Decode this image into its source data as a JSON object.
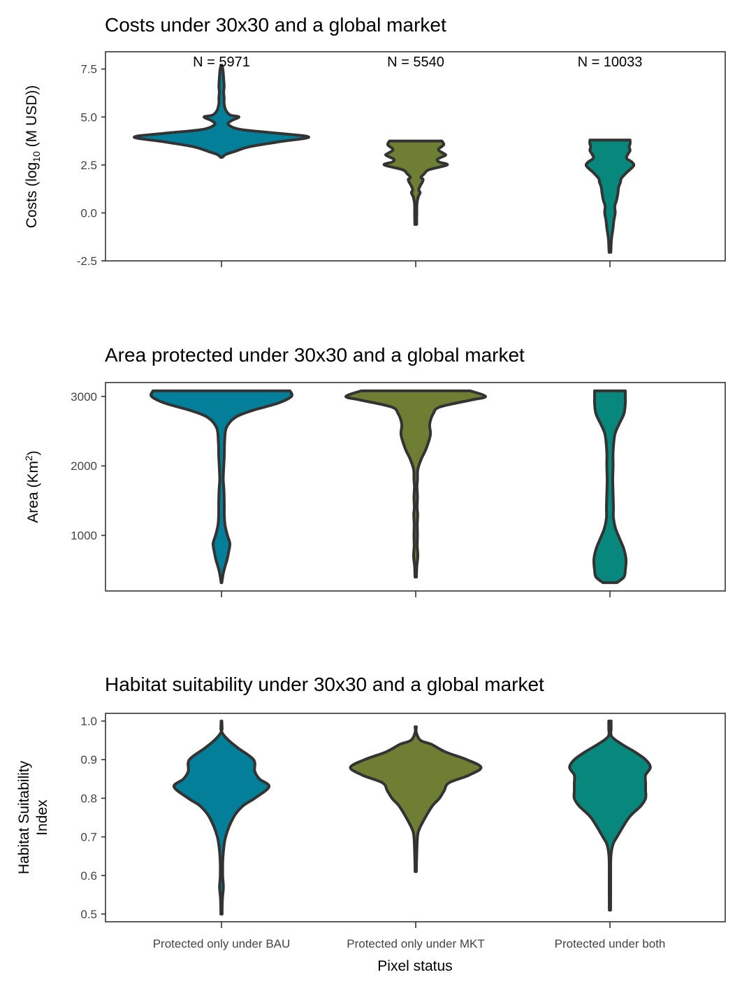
{
  "chart_data": [
    {
      "type": "violin",
      "title": "Costs under 30x30 and a global market",
      "ylabel_main": "Costs (log",
      "ylabel_sub": "10",
      "ylabel_tail": " (M USD))",
      "ylim": [
        -2.5,
        8.4
      ],
      "yticks": [
        -2.5,
        0.0,
        2.5,
        5.0,
        7.5
      ],
      "ytick_labels": [
        "-2.5",
        "0.0",
        "2.5",
        "5.0",
        "7.5"
      ],
      "categories": [
        "Protected only under BAU",
        "Protected only under MKT",
        "Protected under both"
      ],
      "annotations": [
        "N = 5971",
        "N = 5540",
        "N = 10033"
      ],
      "colors": [
        "#047F9A",
        "#6E7F33",
        "#08877C"
      ],
      "series": [
        {
          "name": "Protected only under BAU",
          "profile": [
            [
              2.9,
              0.01
            ],
            [
              3.05,
              0.05
            ],
            [
              3.2,
              0.15
            ],
            [
              3.45,
              0.32
            ],
            [
              3.7,
              0.65
            ],
            [
              3.95,
              1.0
            ],
            [
              4.15,
              0.65
            ],
            [
              4.35,
              0.22
            ],
            [
              4.6,
              0.08
            ],
            [
              4.8,
              0.11
            ],
            [
              5.0,
              0.2
            ],
            [
              5.1,
              0.1
            ],
            [
              5.35,
              0.05
            ],
            [
              5.7,
              0.03
            ],
            [
              6.0,
              0.03
            ],
            [
              6.3,
              0.025
            ],
            [
              6.6,
              0.03
            ],
            [
              7.0,
              0.025
            ],
            [
              7.3,
              0.02
            ],
            [
              7.5,
              0.015
            ],
            [
              7.7,
              0.005
            ]
          ]
        },
        {
          "name": "Protected only under MKT",
          "profile": [
            [
              -0.6,
              0.01
            ],
            [
              0.0,
              0.012
            ],
            [
              0.5,
              0.014
            ],
            [
              0.85,
              0.03
            ],
            [
              1.05,
              0.05
            ],
            [
              1.2,
              0.035
            ],
            [
              1.4,
              0.05
            ],
            [
              1.6,
              0.075
            ],
            [
              1.75,
              0.085
            ],
            [
              1.85,
              0.06
            ],
            [
              2.05,
              0.1
            ],
            [
              2.25,
              0.15
            ],
            [
              2.5,
              0.36
            ],
            [
              2.65,
              0.27
            ],
            [
              2.8,
              0.25
            ],
            [
              3.0,
              0.34
            ],
            [
              3.1,
              0.32
            ],
            [
              3.3,
              0.26
            ],
            [
              3.55,
              0.32
            ],
            [
              3.75,
              0.3
            ]
          ]
        },
        {
          "name": "Protected under both",
          "profile": [
            [
              -2.05,
              0.01
            ],
            [
              -1.5,
              0.015
            ],
            [
              -1.2,
              0.022
            ],
            [
              -0.8,
              0.035
            ],
            [
              -0.4,
              0.045
            ],
            [
              0.0,
              0.06
            ],
            [
              0.35,
              0.055
            ],
            [
              0.65,
              0.075
            ],
            [
              1.0,
              0.09
            ],
            [
              1.35,
              0.1
            ],
            [
              1.6,
              0.12
            ],
            [
              1.8,
              0.13
            ],
            [
              2.1,
              0.19
            ],
            [
              2.45,
              0.27
            ],
            [
              2.65,
              0.25
            ],
            [
              2.85,
              0.19
            ],
            [
              3.1,
              0.21
            ],
            [
              3.25,
              0.23
            ],
            [
              3.45,
              0.22
            ],
            [
              3.6,
              0.23
            ],
            [
              3.8,
              0.23
            ]
          ]
        }
      ]
    },
    {
      "type": "violin",
      "title": "Area protected under 30x30 and a global market",
      "ylabel_main": "Area (Km",
      "ylabel_sup": "2",
      "ylabel_tail": ")",
      "ylim": [
        200,
        3200
      ],
      "yticks": [
        1000,
        2000,
        3000
      ],
      "ytick_labels": [
        "1000",
        "2000",
        "3000"
      ],
      "categories": [
        "Protected only under BAU",
        "Protected only under MKT",
        "Protected under both"
      ],
      "colors": [
        "#047F9A",
        "#6E7F33",
        "#08877C"
      ],
      "series": [
        {
          "name": "Protected only under BAU",
          "profile": [
            [
              320,
              0.005
            ],
            [
              450,
              0.025
            ],
            [
              550,
              0.05
            ],
            [
              650,
              0.08
            ],
            [
              750,
              0.1
            ],
            [
              880,
              0.12
            ],
            [
              1000,
              0.085
            ],
            [
              1150,
              0.05
            ],
            [
              1300,
              0.04
            ],
            [
              1450,
              0.04
            ],
            [
              1650,
              0.035
            ],
            [
              1800,
              0.025
            ],
            [
              1950,
              0.03
            ],
            [
              2150,
              0.04
            ],
            [
              2350,
              0.045
            ],
            [
              2550,
              0.07
            ],
            [
              2700,
              0.2
            ],
            [
              2800,
              0.45
            ],
            [
              2900,
              0.8
            ],
            [
              3000,
              1.0
            ],
            [
              3080,
              0.98
            ]
          ]
        },
        {
          "name": "Protected only under MKT",
          "profile": [
            [
              400,
              0.01
            ],
            [
              550,
              0.015
            ],
            [
              700,
              0.03
            ],
            [
              850,
              0.022
            ],
            [
              1000,
              0.025
            ],
            [
              1150,
              0.022
            ],
            [
              1300,
              0.028
            ],
            [
              1400,
              0.02
            ],
            [
              1550,
              0.025
            ],
            [
              1700,
              0.018
            ],
            [
              1800,
              0.025
            ],
            [
              1950,
              0.03
            ],
            [
              2100,
              0.08
            ],
            [
              2250,
              0.15
            ],
            [
              2450,
              0.21
            ],
            [
              2600,
              0.2
            ],
            [
              2750,
              0.25
            ],
            [
              2850,
              0.35
            ],
            [
              2950,
              0.8
            ],
            [
              3000,
              1.0
            ],
            [
              3080,
              0.78
            ]
          ]
        },
        {
          "name": "Protected under both",
          "profile": [
            [
              320,
              0.1
            ],
            [
              400,
              0.2
            ],
            [
              500,
              0.22
            ],
            [
              650,
              0.23
            ],
            [
              800,
              0.2
            ],
            [
              950,
              0.14
            ],
            [
              1100,
              0.08
            ],
            [
              1250,
              0.05
            ],
            [
              1400,
              0.05
            ],
            [
              1600,
              0.045
            ],
            [
              1800,
              0.04
            ],
            [
              2000,
              0.045
            ],
            [
              2200,
              0.045
            ],
            [
              2450,
              0.07
            ],
            [
              2600,
              0.13
            ],
            [
              2750,
              0.2
            ],
            [
              2900,
              0.22
            ],
            [
              3000,
              0.22
            ],
            [
              3080,
              0.22
            ]
          ]
        }
      ]
    },
    {
      "type": "violin",
      "title": "Habitat suitability under 30x30 and a global market",
      "ylabel_main": "Habitat Suitability",
      "ylabel_line2": "Index",
      "xlabel": "Pixel status",
      "ylim": [
        0.48,
        1.02
      ],
      "yticks": [
        0.5,
        0.6,
        0.7,
        0.8,
        0.9,
        1.0
      ],
      "ytick_labels": [
        "0.5",
        "0.6",
        "0.7",
        "0.8",
        "0.9",
        "1.0"
      ],
      "categories": [
        "Protected only under BAU",
        "Protected only under MKT",
        "Protected under both"
      ],
      "colors": [
        "#047F9A",
        "#6E7F33",
        "#08877C"
      ],
      "series": [
        {
          "name": "Protected only under BAU",
          "profile": [
            [
              0.5,
              0.005
            ],
            [
              0.54,
              0.008
            ],
            [
              0.57,
              0.016
            ],
            [
              0.6,
              0.01
            ],
            [
              0.65,
              0.013
            ],
            [
              0.7,
              0.035
            ],
            [
              0.75,
              0.1
            ],
            [
              0.78,
              0.18
            ],
            [
              0.8,
              0.28
            ],
            [
              0.83,
              0.4
            ],
            [
              0.85,
              0.32
            ],
            [
              0.87,
              0.28
            ],
            [
              0.9,
              0.27
            ],
            [
              0.93,
              0.14
            ],
            [
              0.95,
              0.06
            ],
            [
              0.97,
              0.005
            ],
            [
              0.98,
              0.005
            ],
            [
              1.0,
              0.003
            ]
          ]
        },
        {
          "name": "Protected only under MKT",
          "profile": [
            [
              0.61,
              0.005
            ],
            [
              0.65,
              0.008
            ],
            [
              0.7,
              0.015
            ],
            [
              0.72,
              0.03
            ],
            [
              0.75,
              0.08
            ],
            [
              0.78,
              0.14
            ],
            [
              0.8,
              0.2
            ],
            [
              0.82,
              0.24
            ],
            [
              0.84,
              0.28
            ],
            [
              0.86,
              0.45
            ],
            [
              0.88,
              0.55
            ],
            [
              0.9,
              0.43
            ],
            [
              0.92,
              0.25
            ],
            [
              0.94,
              0.13
            ],
            [
              0.95,
              0.04
            ],
            [
              0.97,
              0.005
            ],
            [
              0.985,
              0.005
            ]
          ]
        },
        {
          "name": "Protected under both",
          "profile": [
            [
              0.51,
              0.005
            ],
            [
              0.55,
              0.006
            ],
            [
              0.6,
              0.006
            ],
            [
              0.65,
              0.008
            ],
            [
              0.68,
              0.025
            ],
            [
              0.7,
              0.06
            ],
            [
              0.75,
              0.16
            ],
            [
              0.78,
              0.26
            ],
            [
              0.8,
              0.3
            ],
            [
              0.82,
              0.3
            ],
            [
              0.84,
              0.3
            ],
            [
              0.86,
              0.3
            ],
            [
              0.88,
              0.34
            ],
            [
              0.9,
              0.3
            ],
            [
              0.92,
              0.21
            ],
            [
              0.94,
              0.1
            ],
            [
              0.96,
              0.015
            ],
            [
              0.98,
              0.01
            ],
            [
              1.0,
              0.01
            ]
          ]
        }
      ]
    }
  ]
}
